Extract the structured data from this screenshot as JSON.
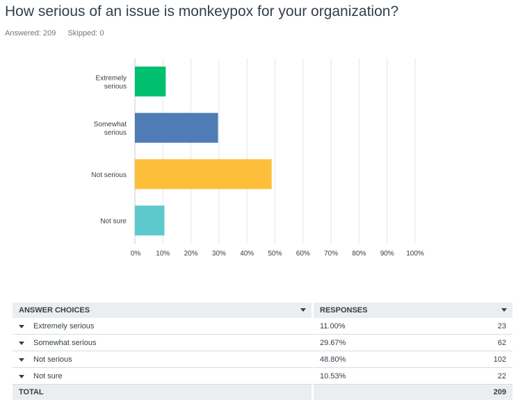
{
  "question": {
    "title": "How serious of an issue is monkeypox for your organization?",
    "answered": "Answered: 209",
    "skipped": "Skipped: 0"
  },
  "chart_data": {
    "type": "bar",
    "orientation": "horizontal",
    "categories": [
      "Extremely serious",
      "Somewhat serious",
      "Not serious",
      "Not sure"
    ],
    "category_labels": [
      [
        "Extremely",
        "serious"
      ],
      [
        "Somewhat",
        "serious"
      ],
      [
        "Not serious"
      ],
      [
        "Not sure"
      ]
    ],
    "values": [
      11.0,
      29.67,
      48.8,
      10.53
    ],
    "colors": [
      "#00bf6f",
      "#507cb6",
      "#fdbe3a",
      "#5dc9cc"
    ],
    "xlim": [
      0,
      100
    ],
    "xticks": [
      "0%",
      "10%",
      "20%",
      "30%",
      "40%",
      "50%",
      "60%",
      "70%",
      "80%",
      "90%",
      "100%"
    ],
    "grid": true
  },
  "table": {
    "headers": {
      "choices": "ANSWER CHOICES",
      "responses": "RESPONSES"
    },
    "rows": [
      {
        "choice": "Extremely serious",
        "percent": "11.00%",
        "count": "23"
      },
      {
        "choice": "Somewhat serious",
        "percent": "29.67%",
        "count": "62"
      },
      {
        "choice": "Not serious",
        "percent": "48.80%",
        "count": "102"
      },
      {
        "choice": "Not sure",
        "percent": "10.53%",
        "count": "22"
      }
    ],
    "total": {
      "label": "TOTAL",
      "count": "209"
    }
  }
}
